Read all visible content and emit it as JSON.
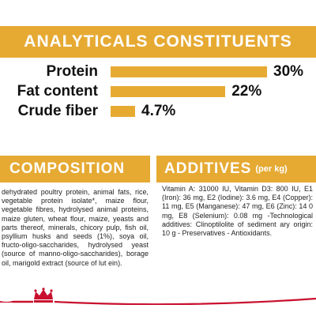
{
  "analytical": {
    "title": "ANALYTICALS CONSTITUENTS",
    "items": [
      {
        "label": "Protein",
        "value": "30%",
        "percent": 30
      },
      {
        "label": "Fat content",
        "value": "22%",
        "percent": 22
      },
      {
        "label": "Crude fiber",
        "value": "4.7%",
        "percent": 4.7
      }
    ]
  },
  "composition": {
    "title": "COMPOSITION",
    "text": "dehydrated poultry protein, animal fats, rice, vegetable protein isolate*, maize flour, vegetable fibres, hydrolysed animal proteins, maize gluten, wheat flour, maize, yeasts and parts thereof, minerals, chicory pulp, fish oil, psyllium husks and seeds (1%), soya oil, fructo-oligo-saccharides, hydrolysed yeast (source of manno-oligo-saccharides), borage oil, marigold extract (source of lut ein)."
  },
  "additives": {
    "title": "ADDITIVES",
    "subtitle": "(per kg)",
    "text": "Vitamin A: 31000 IU, Vitamin D3: 800 IU, E1 (Iron): 36 mg, E2 (Iodine): 3.6 mg, E4 (Copper): 11 mg, E5 (Manganese): 47 mg, E6 (Zinc): 14 0 mg, E8 (Selenium): 0.08 mg -Technological additives: Clinoptilolite of sediment ary origin: 10 g - Preservatives - Antioxidants."
  },
  "colors": {
    "accent": "#e6aa33",
    "brand_red": "#c8102e"
  },
  "icons": {
    "brand": "crown-logo-icon"
  }
}
